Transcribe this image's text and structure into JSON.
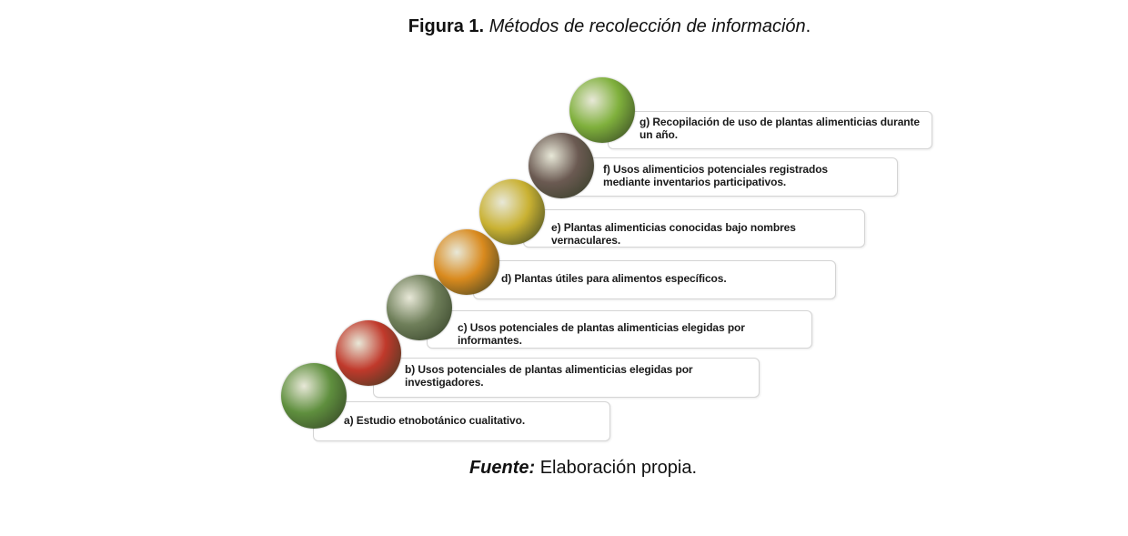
{
  "figure": {
    "label": "Figura 1.",
    "title": "Métodos de recolección de información",
    "title_end": "."
  },
  "steps": [
    {
      "text": "a) Estudio etnobotánico cualitativo.",
      "image": "people-in-forest-photo",
      "color": "#5f8f3e"
    },
    {
      "text": "b) Usos potenciales de plantas alimenticias elegidas por investigadores.",
      "image": "red-fruits-photo",
      "color": "#c0392b"
    },
    {
      "text": "c) Usos potenciales de plantas alimenticias elegidas por informantes.",
      "image": "tree-photo",
      "color": "#6f7f5a"
    },
    {
      "text": "d) Plantas útiles para alimentos específicos.",
      "image": "cacao-pods-photo",
      "color": "#d98a1e"
    },
    {
      "text": "e) Plantas alimenticias conocidas bajo nombres vernaculares.",
      "image": "spiky-fruit-photo",
      "color": "#c9b132"
    },
    {
      "text": "f) Usos alimenticios potenciales registrados mediante inventarios participativos.",
      "image": "group-meeting-photo",
      "color": "#6b5a52"
    },
    {
      "text": "g) Recopilación de uso de plantas alimenticias durante un año.",
      "image": "plantains-photo",
      "color": "#7fb03c"
    }
  ],
  "source": {
    "label": "Fuente:",
    "text": " Elaboración propia."
  }
}
